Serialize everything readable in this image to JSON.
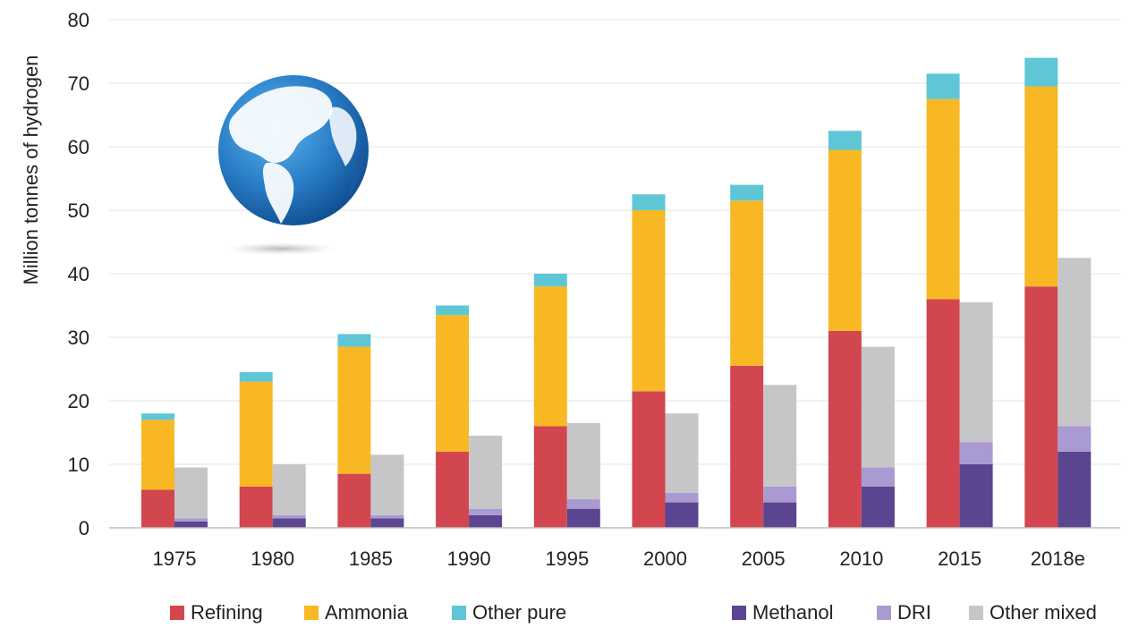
{
  "chart_data": {
    "type": "bar",
    "ylabel": "Million tonnes of hydrogen",
    "ylim": [
      0,
      80
    ],
    "yticks": [
      0,
      10,
      20,
      30,
      40,
      50,
      60,
      70,
      80
    ],
    "categories": [
      "1975",
      "1980",
      "1985",
      "1990",
      "1995",
      "2000",
      "2005",
      "2010",
      "2015",
      "2018e"
    ],
    "grid": true,
    "legend_position": "bottom",
    "stacks": [
      {
        "name": "pure",
        "series": [
          {
            "name": "Refining",
            "color": "#d2464f",
            "values": [
              6,
              6.5,
              8.5,
              12,
              16,
              21.5,
              25.5,
              31,
              36,
              38
            ]
          },
          {
            "name": "Ammonia",
            "color": "#f8b824",
            "values": [
              11,
              16.5,
              20,
              21.5,
              22,
              28.5,
              26,
              28.5,
              31.5,
              31.5
            ]
          },
          {
            "name": "Other pure",
            "color": "#5fc6d6",
            "values": [
              1,
              1.5,
              2,
              1.5,
              2,
              2.5,
              2.5,
              3,
              4,
              4.5
            ]
          }
        ]
      },
      {
        "name": "mixed",
        "series": [
          {
            "name": "Methanol",
            "color": "#5b4590",
            "values": [
              1,
              1.5,
              1.5,
              2,
              3,
              4,
              4,
              6.5,
              10,
              12
            ]
          },
          {
            "name": "DRI",
            "color": "#a99ad2",
            "values": [
              0.5,
              0.5,
              0.5,
              1,
              1.5,
              1.5,
              2.5,
              3,
              3.5,
              4
            ]
          },
          {
            "name": "Other mixed",
            "color": "#c6c6c8",
            "values": [
              8,
              8,
              9.5,
              11.5,
              12,
              12.5,
              16,
              19,
              22,
              26.5
            ]
          }
        ]
      }
    ]
  }
}
